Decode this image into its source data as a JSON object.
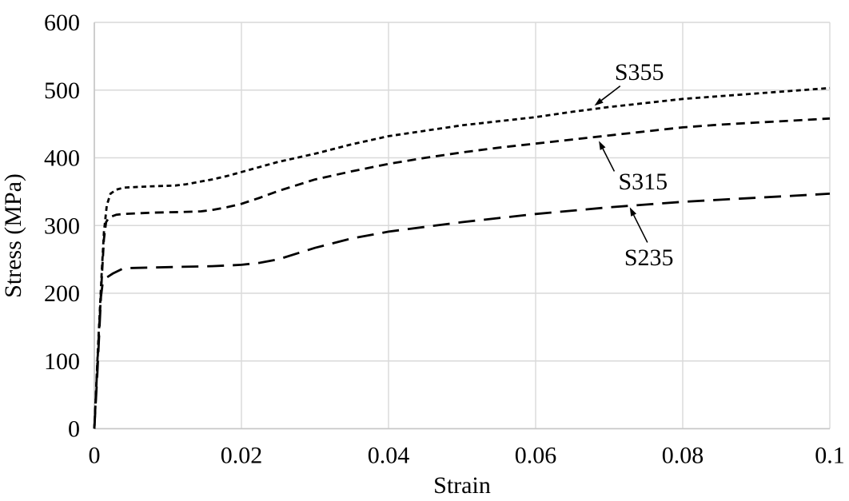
{
  "chart_data": {
    "type": "line",
    "title": "",
    "xlabel": "Strain",
    "ylabel": "Stress (MPa)",
    "xlim": [
      0,
      0.1
    ],
    "ylim": [
      0,
      600
    ],
    "x_ticks": [
      0,
      0.02,
      0.04,
      0.06,
      0.08,
      0.1
    ],
    "x_tick_labels": [
      "0",
      "0.02",
      "0.04",
      "0.06",
      "0.08",
      "0.1"
    ],
    "y_ticks": [
      0,
      100,
      200,
      300,
      400,
      500,
      600
    ],
    "y_tick_labels": [
      "0",
      "100",
      "200",
      "300",
      "400",
      "500",
      "600"
    ],
    "grid": true,
    "legend_position": "none-inline-annotations",
    "colors": {
      "line": "#000000",
      "gridline": "#d9d9d9",
      "axis": "#c6c6c6",
      "text": "#000000",
      "background": "#ffffff"
    },
    "series": [
      {
        "name": "S355",
        "dash": "short",
        "points": [
          [
            0,
            0
          ],
          [
            0.0005,
            120
          ],
          [
            0.001,
            230
          ],
          [
            0.0013,
            290
          ],
          [
            0.0017,
            330
          ],
          [
            0.0022,
            347
          ],
          [
            0.003,
            353
          ],
          [
            0.004,
            356
          ],
          [
            0.006,
            357
          ],
          [
            0.008,
            358
          ],
          [
            0.011,
            359
          ],
          [
            0.0125,
            361
          ],
          [
            0.014,
            364
          ],
          [
            0.016,
            368
          ],
          [
            0.018,
            373
          ],
          [
            0.02,
            379
          ],
          [
            0.025,
            394
          ],
          [
            0.03,
            406
          ],
          [
            0.035,
            420
          ],
          [
            0.04,
            432
          ],
          [
            0.045,
            440
          ],
          [
            0.05,
            448
          ],
          [
            0.055,
            454
          ],
          [
            0.06,
            460
          ],
          [
            0.065,
            468
          ],
          [
            0.07,
            475
          ],
          [
            0.075,
            481
          ],
          [
            0.08,
            487
          ],
          [
            0.085,
            491
          ],
          [
            0.09,
            495
          ],
          [
            0.095,
            499
          ],
          [
            0.1,
            503
          ]
        ]
      },
      {
        "name": "S315",
        "dash": "medium",
        "points": [
          [
            0,
            0
          ],
          [
            0.0005,
            115
          ],
          [
            0.001,
            220
          ],
          [
            0.0013,
            280
          ],
          [
            0.0016,
            305
          ],
          [
            0.002,
            312
          ],
          [
            0.003,
            316
          ],
          [
            0.004,
            317
          ],
          [
            0.008,
            319
          ],
          [
            0.012,
            320
          ],
          [
            0.0145,
            321
          ],
          [
            0.016,
            323
          ],
          [
            0.018,
            327
          ],
          [
            0.02,
            332
          ],
          [
            0.0225,
            341
          ],
          [
            0.025,
            351
          ],
          [
            0.03,
            368
          ],
          [
            0.035,
            380
          ],
          [
            0.04,
            391
          ],
          [
            0.045,
            400
          ],
          [
            0.05,
            408
          ],
          [
            0.055,
            415
          ],
          [
            0.06,
            421
          ],
          [
            0.065,
            427
          ],
          [
            0.07,
            433
          ],
          [
            0.075,
            439
          ],
          [
            0.08,
            445
          ],
          [
            0.085,
            449
          ],
          [
            0.09,
            452
          ],
          [
            0.095,
            455
          ],
          [
            0.1,
            458
          ]
        ]
      },
      {
        "name": "S235",
        "dash": "long",
        "points": [
          [
            0,
            0
          ],
          [
            0.0004,
            80
          ],
          [
            0.0009,
            195
          ],
          [
            0.0011,
            212
          ],
          [
            0.0015,
            222
          ],
          [
            0.0025,
            229
          ],
          [
            0.004,
            237
          ],
          [
            0.008,
            238
          ],
          [
            0.012,
            239
          ],
          [
            0.016,
            240
          ],
          [
            0.018,
            241
          ],
          [
            0.02,
            242
          ],
          [
            0.0225,
            245
          ],
          [
            0.025,
            250
          ],
          [
            0.03,
            267
          ],
          [
            0.035,
            281
          ],
          [
            0.04,
            291
          ],
          [
            0.045,
            298
          ],
          [
            0.05,
            305
          ],
          [
            0.055,
            311
          ],
          [
            0.06,
            317
          ],
          [
            0.065,
            322
          ],
          [
            0.07,
            327
          ],
          [
            0.075,
            331
          ],
          [
            0.08,
            335
          ],
          [
            0.085,
            338
          ],
          [
            0.09,
            341
          ],
          [
            0.095,
            344
          ],
          [
            0.1,
            347
          ]
        ]
      }
    ],
    "annotations": [
      {
        "text": "S355",
        "text_at": [
          0.0741,
          527
        ],
        "arrow_from": [
          0.0715,
          506
        ],
        "arrow_to": [
          0.068,
          477
        ]
      },
      {
        "text": "S315",
        "text_at": [
          0.0746,
          365
        ],
        "arrow_from": [
          0.0707,
          380
        ],
        "arrow_to": [
          0.0686,
          425
        ]
      },
      {
        "text": "S235",
        "text_at": [
          0.0754,
          253
        ],
        "arrow_from": [
          0.0752,
          275
        ],
        "arrow_to": [
          0.0728,
          327
        ]
      }
    ]
  }
}
